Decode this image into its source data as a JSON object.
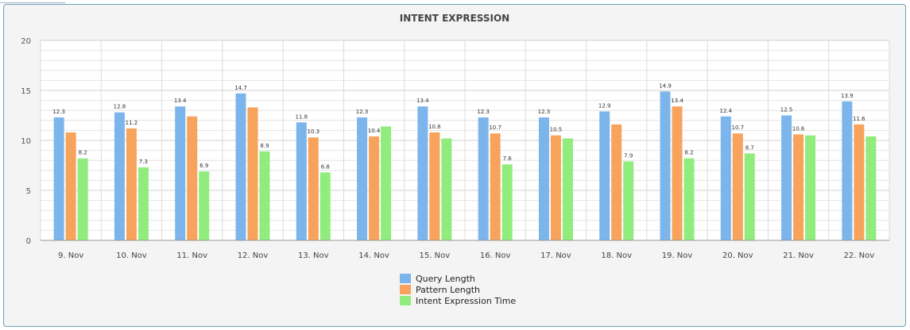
{
  "chart_data": {
    "type": "bar",
    "title": "INTENT EXPRESSION",
    "xlabel": "",
    "ylabel": "",
    "ylim": [
      0,
      20
    ],
    "yticks": [
      0,
      5,
      10,
      15,
      20
    ],
    "grid": true,
    "legend_placement": "bottom-center",
    "categories": [
      "9. Nov",
      "10. Nov",
      "11. Nov",
      "12. Nov",
      "13. Nov",
      "14. Nov",
      "15. Nov",
      "16. Nov",
      "17. Nov",
      "18. Nov",
      "19. Nov",
      "20. Nov",
      "21. Nov",
      "22. Nov"
    ],
    "series": [
      {
        "name": "Query Length",
        "color": "#7cb5ec",
        "values": [
          12.3,
          12.8,
          13.4,
          14.7,
          11.8,
          12.3,
          13.4,
          12.3,
          12.3,
          12.9,
          14.9,
          12.4,
          12.5,
          13.9
        ],
        "labels": [
          "12.3",
          "12.8",
          "13.4",
          "14.7",
          "11.8",
          "12.3",
          "13.4",
          "12.3",
          "12.3",
          "12.9",
          "14.9",
          "12.4",
          "12.5",
          "13.9"
        ]
      },
      {
        "name": "Pattern Length",
        "color": "#f7a35c",
        "values": [
          10.8,
          11.2,
          12.4,
          13.3,
          10.3,
          10.4,
          10.8,
          10.7,
          10.5,
          11.6,
          13.4,
          10.7,
          10.6,
          11.6
        ],
        "labels": [
          "",
          "11.2",
          "",
          "",
          "10.3",
          "10.4",
          "10.8",
          "10.7",
          "10.5",
          "",
          "13.4",
          "10.7",
          "10.6",
          "11.6"
        ]
      },
      {
        "name": "Intent Expression Time",
        "color": "#90ed7d",
        "values": [
          8.2,
          7.3,
          6.9,
          8.9,
          6.8,
          11.4,
          10.2,
          7.6,
          10.2,
          7.9,
          8.2,
          8.7,
          10.5,
          10.4
        ],
        "labels": [
          "8.2",
          "7.3",
          "6.9",
          "8.9",
          "6.8",
          "",
          "",
          "7.6",
          "",
          "7.9",
          "8.2",
          "8.7",
          "",
          ""
        ]
      }
    ]
  }
}
